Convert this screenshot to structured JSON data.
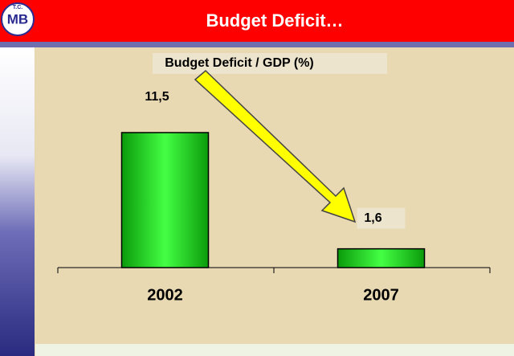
{
  "slide_title": "Budget Deficit…",
  "logo": {
    "top": "T.C.",
    "mark": "MB"
  },
  "chart_data": {
    "type": "bar",
    "title": "Budget Deficit / GDP (%)",
    "categories": [
      "2002",
      "2007"
    ],
    "values": [
      11.5,
      1.6
    ],
    "value_labels": [
      "11,5",
      "1,6"
    ],
    "color": "#22dd22"
  }
}
